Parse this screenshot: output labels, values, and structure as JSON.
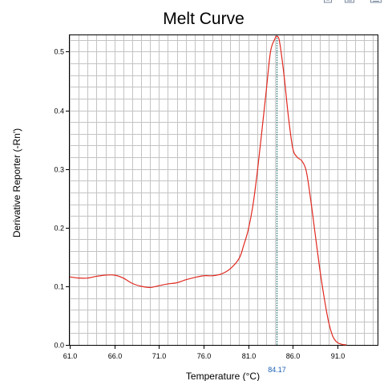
{
  "toolbar": {
    "icons": [
      "zoom-icon",
      "options-icon",
      "export-icon"
    ],
    "icon_color": "#7a8aa0"
  },
  "chart_data": {
    "type": "line",
    "title": "Melt Curve",
    "xlabel": "Temperature (°C)",
    "ylabel": "Derivative Reporter (-Rn')",
    "xlim": [
      61.0,
      95.5
    ],
    "ylim": [
      0.0,
      0.528
    ],
    "grid": true,
    "x_ticks": [
      61.0,
      66.0,
      71.0,
      76.0,
      81.0,
      86.0,
      91.0
    ],
    "x_tick_labels": [
      "61.0",
      "66.0",
      "71.0",
      "76.0",
      "81.0",
      "86.0",
      "91.0"
    ],
    "y_ticks": [
      0.0,
      0.1,
      0.2,
      0.3,
      0.4,
      0.5
    ],
    "y_tick_labels": [
      "0.0",
      "0.1",
      "0.2",
      "0.3",
      "0.4",
      "0.5"
    ],
    "minor_x_step": 1.0,
    "minor_y_step": 0.02,
    "line_color": "#e0281e",
    "marker": {
      "x": 84.17,
      "label": "84.17",
      "color": "#1a5fb4",
      "line_color": "#2c7a7a"
    },
    "series": [
      {
        "color": "#e0281e",
        "x": [
          61.0,
          62.0,
          63.0,
          64.0,
          65.0,
          66.0,
          67.0,
          68.0,
          69.0,
          70.0,
          71.0,
          72.0,
          73.0,
          74.0,
          75.0,
          76.0,
          77.0,
          78.0,
          79.0,
          80.0,
          80.5,
          81.0,
          81.5,
          82.0,
          82.5,
          83.0,
          83.5,
          84.0,
          84.2,
          84.5,
          85.0,
          85.5,
          86.0,
          86.5,
          87.0,
          87.5,
          88.0,
          88.5,
          89.0,
          89.5,
          90.0,
          90.5,
          91.0,
          91.5,
          92.0
        ],
        "y": [
          0.116,
          0.114,
          0.114,
          0.117,
          0.119,
          0.119,
          0.114,
          0.105,
          0.1,
          0.098,
          0.101,
          0.104,
          0.106,
          0.111,
          0.115,
          0.118,
          0.118,
          0.121,
          0.13,
          0.148,
          0.17,
          0.196,
          0.235,
          0.292,
          0.36,
          0.43,
          0.5,
          0.522,
          0.526,
          0.518,
          0.462,
          0.39,
          0.335,
          0.32,
          0.314,
          0.297,
          0.248,
          0.19,
          0.132,
          0.082,
          0.04,
          0.014,
          0.004,
          0.001,
          0.0
        ]
      }
    ]
  }
}
